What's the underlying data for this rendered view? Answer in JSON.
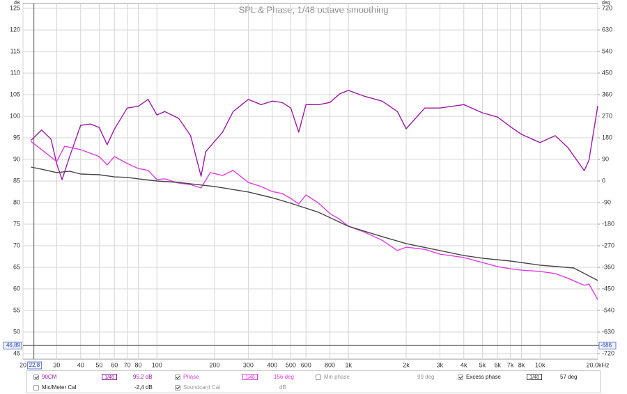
{
  "chart_data": {
    "type": "line",
    "title": "SPL & Phase, 1/48 octave smoothing",
    "ylabel": "dB",
    "y2label": "deg",
    "xscale": "log",
    "xlim": [
      20,
      20000
    ],
    "xticks": [
      20,
      30,
      40,
      50,
      60,
      70,
      80,
      100,
      200,
      300,
      400,
      500,
      600,
      800,
      {
        "value": 1000,
        "label": "1k"
      },
      {
        "value": 2000,
        "label": "2k"
      },
      {
        "value": 3000,
        "label": "3k"
      },
      {
        "value": 4000,
        "label": "4k"
      },
      {
        "value": 5000,
        "label": "5k"
      },
      {
        "value": 6000,
        "label": "6k"
      },
      {
        "value": 7000,
        "label": "7k"
      },
      {
        "value": 8000,
        "label": "8k"
      },
      {
        "value": 10000,
        "label": "10k"
      },
      {
        "value": 20000,
        "label": "20,0kHz"
      }
    ],
    "ylim": [
      45,
      125
    ],
    "yticks": [
      45,
      50,
      55,
      60,
      65,
      70,
      75,
      80,
      85,
      90,
      95,
      100,
      105,
      110,
      115,
      120,
      125
    ],
    "y2lim": [
      -720,
      720
    ],
    "y2ticks": [
      -720,
      -630,
      -540,
      -450,
      -360,
      -270,
      -180,
      -90,
      0,
      90,
      180,
      270,
      360,
      450,
      540,
      630,
      720
    ],
    "grid": true,
    "cursor": {
      "x": {
        "value": 22.8,
        "label": "22,8"
      },
      "y": {
        "value": 46.89,
        "label": "46,89"
      },
      "y2": -686
    },
    "series": [
      {
        "name": "90CM",
        "color": "#9b1aa6",
        "checked": true,
        "readout": "95,2 dB",
        "x": [
          22,
          25,
          28,
          30,
          32,
          35,
          40,
          45,
          50,
          55,
          60,
          70,
          80,
          90,
          100,
          110,
          130,
          150,
          170,
          180,
          220,
          250,
          300,
          350,
          400,
          450,
          500,
          550,
          600,
          700,
          800,
          900,
          1000,
          1200,
          1500,
          1800,
          2000,
          2500,
          3000,
          4000,
          5000,
          6000,
          7000,
          8000,
          10000,
          12000,
          14000,
          17000,
          18000,
          20000
        ],
        "values": [
          94.4,
          96.8,
          94.7,
          89,
          85.3,
          90.6,
          97.9,
          98.2,
          97.4,
          93.4,
          97,
          101.9,
          102.3,
          103.9,
          100.3,
          101.1,
          99.5,
          95.5,
          86.1,
          91.8,
          96.3,
          101.1,
          103.9,
          102.7,
          103.5,
          103.2,
          101.9,
          96.3,
          102.7,
          102.7,
          103.2,
          105.2,
          106,
          104.7,
          103.5,
          101.1,
          97.1,
          101.9,
          101.9,
          102.7,
          100.8,
          99.8,
          97.6,
          95.8,
          93.9,
          95.5,
          92.7,
          87.4,
          89.8,
          102.4
        ]
      },
      {
        "name": "Phase",
        "color": "#e03ce0",
        "axis": "y2",
        "checked": true,
        "readout": "156 deg",
        "x": [
          22,
          25,
          30,
          33,
          40,
          50,
          55,
          60,
          70,
          80,
          90,
          100,
          110,
          130,
          150,
          170,
          190,
          220,
          250,
          300,
          350,
          400,
          450,
          500,
          550,
          600,
          700,
          800,
          900,
          1000,
          1200,
          1500,
          1800,
          2000,
          2500,
          3000,
          4000,
          5000,
          6000,
          7000,
          8000,
          10000,
          12000,
          14000,
          17000,
          18000,
          20000
        ],
        "values": [
          165,
          131,
          81,
          145,
          131,
          102,
          67,
          102,
          73,
          52,
          44,
          6,
          9,
          -9,
          -15,
          -29,
          35,
          23,
          44,
          -6,
          -23,
          -44,
          -52,
          -73,
          -96,
          -58,
          -93,
          -136,
          -160,
          -189,
          -212,
          -247,
          -290,
          -276,
          -285,
          -305,
          -319,
          -340,
          -357,
          -366,
          -372,
          -377,
          -386,
          -406,
          -435,
          -430,
          -494
        ]
      },
      {
        "name": "Excess phase",
        "color": "#444444",
        "axis": "y2",
        "checked": true,
        "readout": "57 deg",
        "x": [
          22,
          25,
          30,
          35,
          40,
          50,
          60,
          70,
          80,
          100,
          130,
          150,
          200,
          300,
          400,
          500,
          700,
          1000,
          1500,
          2000,
          3000,
          4000,
          5000,
          7000,
          10000,
          15000,
          20000
        ],
        "values": [
          58,
          49,
          35,
          41,
          29,
          26,
          17,
          15,
          9,
          0,
          -6,
          -12,
          -23,
          -46,
          -70,
          -93,
          -131,
          -189,
          -232,
          -261,
          -290,
          -311,
          -322,
          -334,
          -351,
          -363,
          -415
        ]
      }
    ]
  },
  "controls": {
    "smoothing": "1/48",
    "min_phase": {
      "label": "Min phase",
      "checked": false,
      "readout": "99 deg"
    },
    "mic_cal": {
      "label": "Mic/Meter Cal",
      "checked": false,
      "readout": "-2,4 dB"
    },
    "soundcard_cal": {
      "label": "Soundcard Cal",
      "checked": true,
      "readout": "dB"
    }
  }
}
